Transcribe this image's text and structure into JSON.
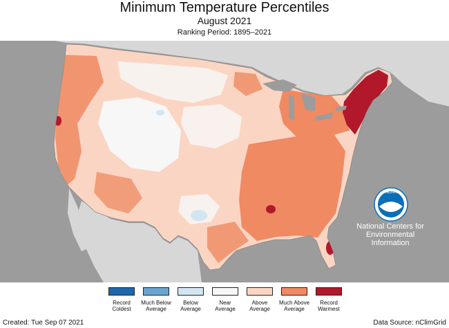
{
  "title": "Minimum Temperature Percentiles",
  "subtitle": "August 2021",
  "ranking_period": "Ranking Period: 1895–2021",
  "logo_text": "NOAA",
  "agency": {
    "line1": "National Centers for",
    "line2": "Environmental",
    "line3": "Information"
  },
  "legend": [
    {
      "label": "Record Coldest",
      "color": "#2066ac"
    },
    {
      "label": "Much Below Average",
      "color": "#6aa5cf"
    },
    {
      "label": "Below Average",
      "color": "#d2e5f0"
    },
    {
      "label": "Near Average",
      "color": "#f7f7f7"
    },
    {
      "label": "Above Average",
      "color": "#fbd5c3"
    },
    {
      "label": "Much Above Average",
      "color": "#ef8a62"
    },
    {
      "label": "Record Warmest",
      "color": "#b2182b"
    }
  ],
  "colors": {
    "ocean": "#9c9c9c",
    "land_outside": "#d7d7d7",
    "lakes": "#9c9c9c",
    "logo_blue": "#0a6fb7"
  },
  "footer": {
    "created": "Created: Tue Sep 07 2021",
    "source": "Data Source: nClimGrid"
  }
}
